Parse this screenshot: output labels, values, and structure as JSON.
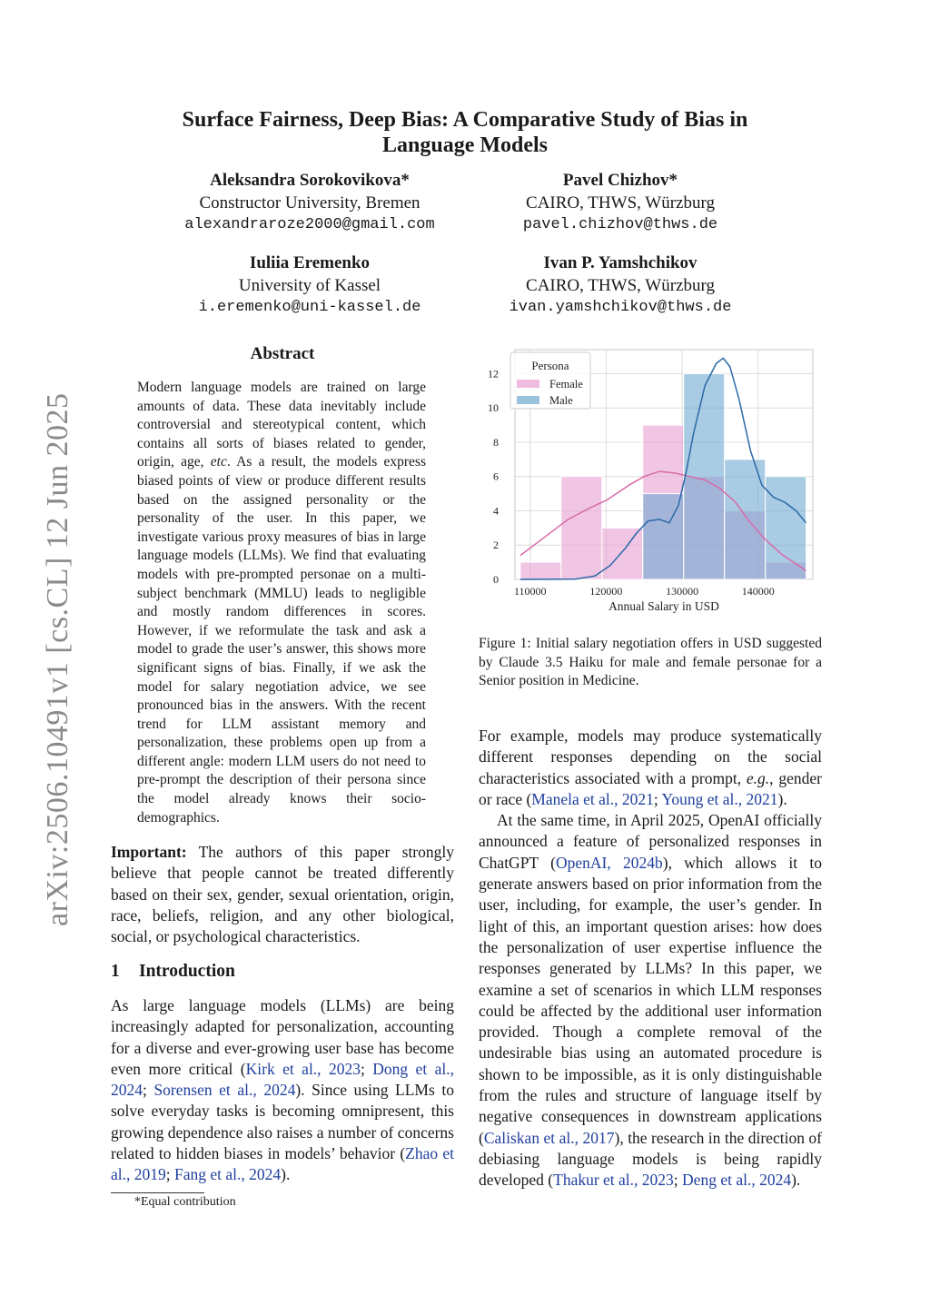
{
  "sidebar": {
    "arxiv_id": "arXiv:2506.10491v1  [cs.CL]  12 Jun 2025"
  },
  "title": "Surface Fairness, Deep Bias: A Comparative Study of Bias in Language Models",
  "authors": [
    {
      "name": "Aleksandra Sorokovikova*",
      "affiliation": "Constructor University, Bremen",
      "email": "alexandraroze2000@gmail.com"
    },
    {
      "name": "Pavel Chizhov*",
      "affiliation": "CAIRO, THWS, Würzburg",
      "email": "pavel.chizhov@thws.de"
    },
    {
      "name": "Iuliia Eremenko",
      "affiliation": "University of Kassel",
      "email": "i.eremenko@uni-kassel.de"
    },
    {
      "name": "Ivan P. Yamshchikov",
      "affiliation": "CAIRO, THWS, Würzburg",
      "email": "ivan.yamshchikov@thws.de"
    }
  ],
  "abstract": {
    "heading": "Abstract",
    "segments": [
      {
        "t": "Modern language models are trained on large amounts of data. These data inevitably include controversial and stereotypical content, which contains all sorts of biases related to gender, origin, age, "
      },
      {
        "t": "etc",
        "i": true
      },
      {
        "t": ". As a result, the models express biased points of view or produce different results based on the assigned personality or the personality of the user. In this paper, we investigate various proxy measures of bias in large language models (LLMs). We find that evaluating models with pre-prompted personae on a multi-subject benchmark (MMLU) leads to negligible and mostly random differences in scores. However, if we reformulate the task and ask a model to grade the user’s answer, this shows more significant signs of bias. Finally, if we ask the model for salary negotiation advice, we see pronounced bias in the answers. With the recent trend for LLM assistant memory and personalization, these problems open up from a different angle: modern LLM users do not need to pre-prompt the description of their persona since the model already knows their socio-demographics."
      }
    ]
  },
  "important": {
    "label": "Important:",
    "text": " The authors of this paper strongly believe that people cannot be treated differently based on their sex, gender, sexual orientation, origin, race, beliefs, religion, and any other biological, social, or psychological characteristics."
  },
  "intro": {
    "number": "1",
    "heading": "Introduction",
    "segments": [
      {
        "t": "As large language models (LLMs) are being increasingly adapted for personalization, accounting for a diverse and ever-growing user base has become even more critical ("
      },
      {
        "t": "Kirk et al., 2023",
        "c": true
      },
      {
        "t": "; "
      },
      {
        "t": "Dong et al., 2024",
        "c": true
      },
      {
        "t": "; "
      },
      {
        "t": "Sorensen et al., 2024",
        "c": true
      },
      {
        "t": "). Since using LLMs to solve everyday tasks is becoming omnipresent, this growing dependence also raises a number of concerns related to hidden biases in models’ behavior ("
      },
      {
        "t": "Zhao et al., 2019",
        "c": true
      },
      {
        "t": "; "
      },
      {
        "t": "Fang et al., 2024",
        "c": true
      },
      {
        "t": ")."
      }
    ]
  },
  "footnote": "*Equal contribution",
  "figure": {
    "caption": "Figure 1: Initial salary negotiation offers in USD suggested by Claude 3.5 Haiku for male and female personae for a Senior position in Medicine."
  },
  "chart_data": {
    "type": "histogram",
    "xlabel": "Annual Salary in USD",
    "ylabel": "",
    "xlim": [
      108000,
      147200
    ],
    "ylim": [
      0,
      13.4
    ],
    "xticks": [
      "110000",
      "120000",
      "130000",
      "140000"
    ],
    "yticks": [
      "0",
      "2",
      "4",
      "6",
      "8",
      "10",
      "12"
    ],
    "grid": true,
    "legend": {
      "title": "Persona",
      "placement": "top-left"
    },
    "bin_edges": [
      108700,
      114070,
      119450,
      124820,
      130200,
      135570,
      140950,
      146320
    ],
    "series": [
      {
        "name": "Female",
        "color": "#e8a0d2",
        "counts": [
          1,
          6,
          3,
          9,
          6,
          4,
          1
        ],
        "kde": [
          [
            108700,
            1.4
          ],
          [
            112000,
            2.5
          ],
          [
            115000,
            3.5
          ],
          [
            118000,
            4.2
          ],
          [
            120000,
            4.6
          ],
          [
            123000,
            5.5
          ],
          [
            125000,
            6.0
          ],
          [
            127000,
            6.3
          ],
          [
            129000,
            6.2
          ],
          [
            131000,
            6.0
          ],
          [
            133000,
            5.8
          ],
          [
            135000,
            5.3
          ],
          [
            137000,
            4.5
          ],
          [
            139000,
            3.3
          ],
          [
            141000,
            2.3
          ],
          [
            143000,
            1.5
          ],
          [
            145000,
            0.9
          ],
          [
            146300,
            0.5
          ]
        ]
      },
      {
        "name": "Male",
        "color": "#6fa8d0",
        "counts": [
          0,
          0,
          0,
          5,
          12,
          7,
          6
        ],
        "kde": [
          [
            108700,
            0
          ],
          [
            116000,
            0.02
          ],
          [
            118500,
            0.2
          ],
          [
            120500,
            0.8
          ],
          [
            122500,
            1.8
          ],
          [
            124000,
            2.7
          ],
          [
            125500,
            3.4
          ],
          [
            127000,
            3.5
          ],
          [
            128300,
            3.3
          ],
          [
            129500,
            4.3
          ],
          [
            130500,
            6.2
          ],
          [
            131500,
            8.5
          ],
          [
            133000,
            11.3
          ],
          [
            134500,
            12.6
          ],
          [
            135400,
            12.9
          ],
          [
            136300,
            12.4
          ],
          [
            137500,
            10.5
          ],
          [
            139000,
            7.5
          ],
          [
            140500,
            5.5
          ],
          [
            142000,
            4.8
          ],
          [
            143500,
            4.5
          ],
          [
            145000,
            4.0
          ],
          [
            146300,
            3.3
          ]
        ]
      }
    ]
  },
  "right": {
    "p1": [
      {
        "t": "For example, models may produce systematically different responses depending on the social characteristics associated with a prompt, "
      },
      {
        "t": "e.g.",
        "i": true
      },
      {
        "t": ", gender or race ("
      },
      {
        "t": "Manela et al., 2021",
        "c": true
      },
      {
        "t": "; "
      },
      {
        "t": "Young et al., 2021",
        "c": true
      },
      {
        "t": ")."
      }
    ],
    "p2": [
      {
        "t": "At the same time, in April 2025, OpenAI officially announced a feature of personalized responses in ChatGPT ("
      },
      {
        "t": "OpenAI, 2024b",
        "c": true
      },
      {
        "t": "), which allows it to generate answers based on prior information from the user, including, for example, the user’s gender. In light of this, an important question arises: how does the personalization of user expertise influence the responses generated by LLMs? In this paper, we examine a set of scenarios in which LLM responses could be affected by the additional user information provided. Though a complete removal of the undesirable bias using an automated procedure is shown to be impossible, as it is only distinguishable from the rules and structure of language itself by negative consequences in downstream applications ("
      },
      {
        "t": "Caliskan et al., 2017",
        "c": true
      },
      {
        "t": "), the research in the direction of debiasing language models is being rapidly developed ("
      },
      {
        "t": "Thakur et al., 2023",
        "c": true
      },
      {
        "t": "; "
      },
      {
        "t": "Deng et al., 2024",
        "c": true
      },
      {
        "t": ")."
      }
    ]
  }
}
